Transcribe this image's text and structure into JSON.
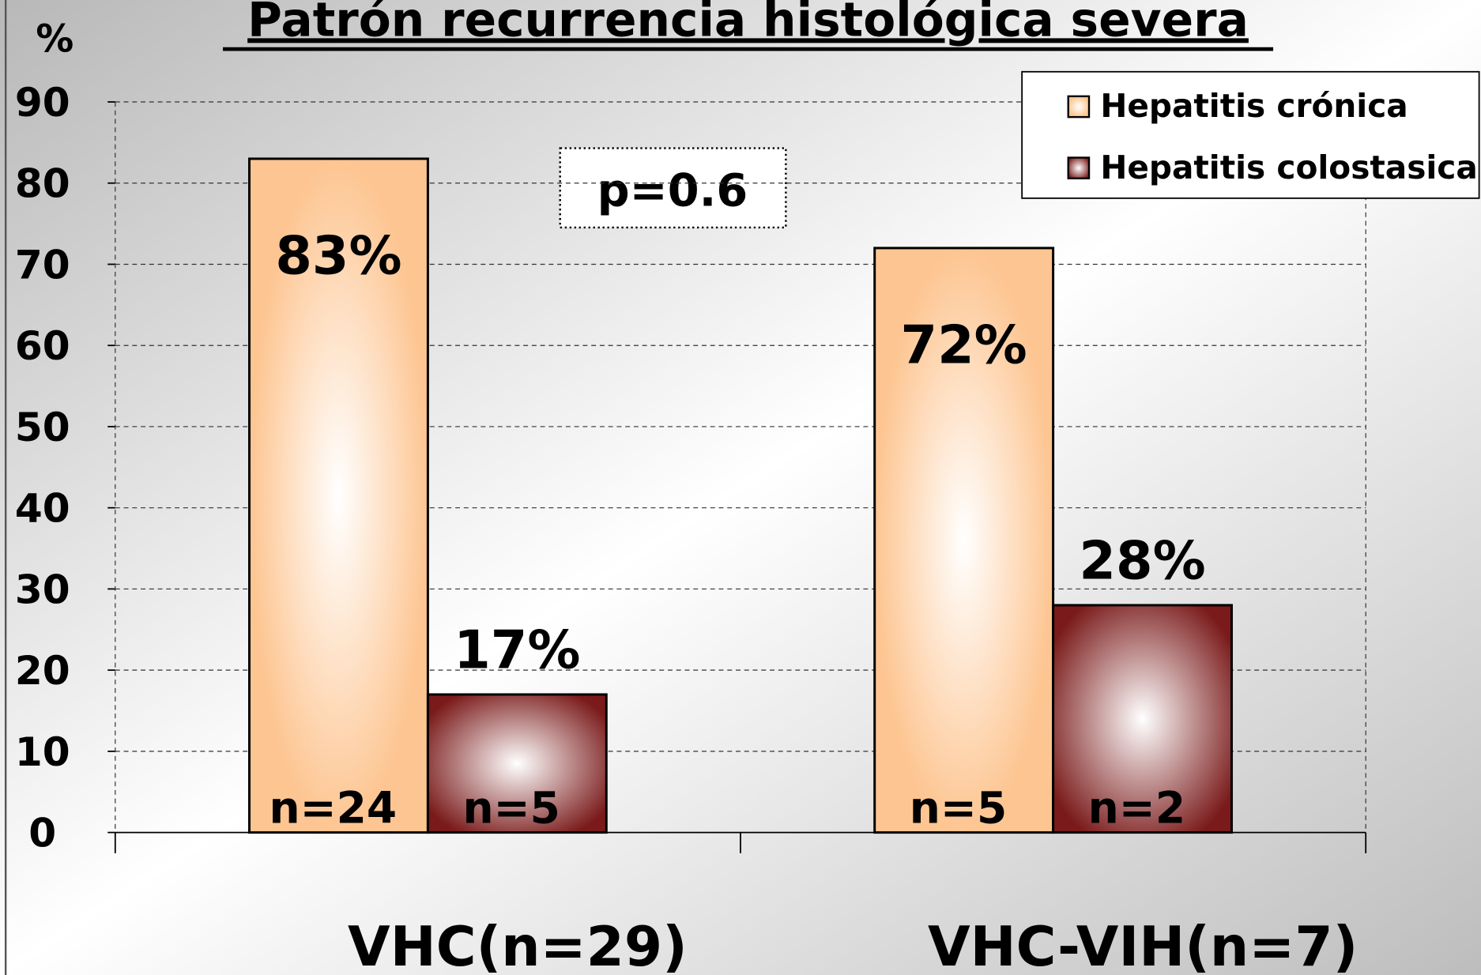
{
  "chart_data": {
    "type": "bar",
    "title": "Patrón recurrencia histológica severa",
    "y_axis_label": "%",
    "annotation": "p=0.6",
    "categories": [
      "VHC(n=29)",
      "VHC-VIH(n=7)"
    ],
    "series": [
      {
        "name": "Hepatitis crónica",
        "color": "#fdc591",
        "values": [
          83,
          72
        ],
        "value_labels": [
          "83%",
          "72%"
        ],
        "sample_labels": [
          "n=24",
          "n=5"
        ]
      },
      {
        "name": "Hepatitis colostasica",
        "color": "#7a1a1a",
        "values": [
          17,
          28
        ],
        "value_labels": [
          "17%",
          "28%"
        ],
        "sample_labels": [
          "n=5",
          "n=2"
        ]
      }
    ],
    "ylim": [
      0,
      90
    ],
    "yticks": [
      0,
      10,
      20,
      30,
      40,
      50,
      60,
      70,
      80,
      90
    ],
    "grid": true,
    "legend": "top-right"
  }
}
